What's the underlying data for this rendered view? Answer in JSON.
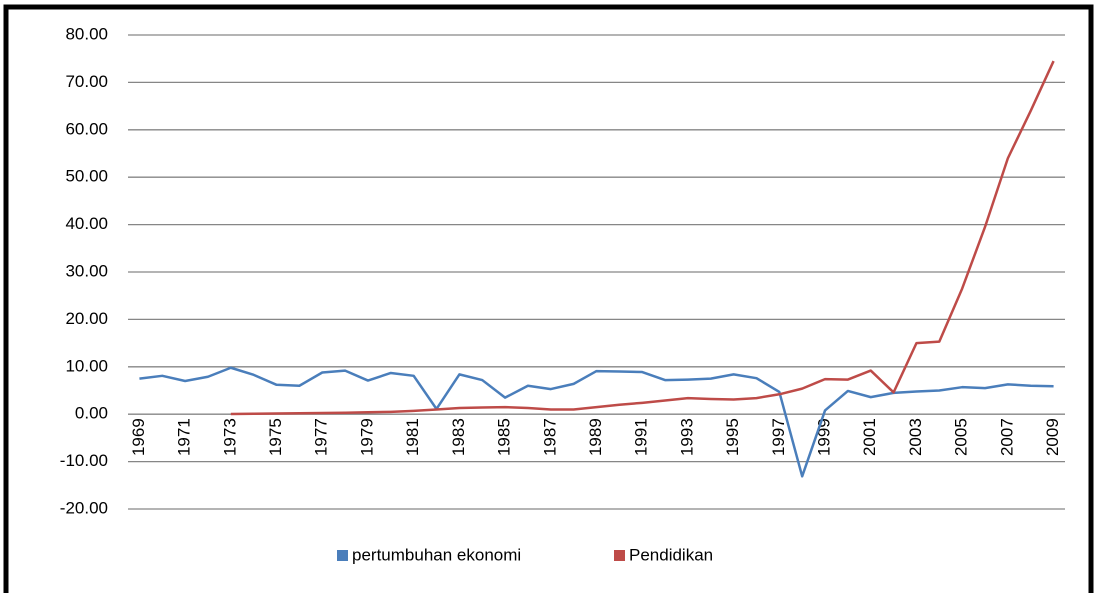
{
  "chart_data": {
    "type": "line",
    "categories": [
      "1969",
      null,
      "1971",
      null,
      "1973",
      null,
      "1975",
      null,
      "1977",
      null,
      "1979",
      null,
      "1981",
      null,
      "1983",
      null,
      "1985",
      null,
      "1987",
      null,
      "1989",
      null,
      "1991",
      null,
      "1993",
      null,
      "1995",
      null,
      "1997",
      null,
      "1999",
      null,
      "2001",
      null,
      "2003",
      null,
      "2005",
      null,
      "2007",
      null,
      "2009"
    ],
    "series": [
      {
        "name": "pertumbuhan ekonomi",
        "color": "#4a7ebb",
        "values": [
          7.5,
          8.1,
          7.0,
          7.9,
          9.8,
          8.3,
          6.2,
          6.0,
          8.8,
          9.2,
          7.1,
          8.7,
          8.1,
          1.1,
          8.4,
          7.2,
          3.5,
          6.0,
          5.3,
          6.4,
          9.1,
          9.0,
          8.9,
          7.2,
          7.3,
          7.5,
          8.4,
          7.6,
          4.7,
          -13.1,
          0.8,
          4.9,
          3.6,
          4.5,
          4.8,
          5.0,
          5.7,
          5.5,
          6.3,
          6.0,
          5.9
        ]
      },
      {
        "name": "Pendidikan",
        "color": "#be4b48",
        "values": [
          null,
          null,
          null,
          null,
          0.05,
          0.1,
          0.15,
          0.2,
          0.25,
          0.3,
          0.4,
          0.5,
          0.7,
          1.0,
          1.3,
          1.4,
          1.5,
          1.3,
          1.0,
          1.0,
          1.5,
          2.0,
          2.4,
          2.9,
          3.4,
          3.2,
          3.1,
          3.4,
          4.2,
          5.4,
          7.4,
          7.3,
          9.2,
          4.6,
          15.0,
          15.3,
          26.5,
          39.5,
          54.0,
          64.0,
          74.5
        ]
      }
    ],
    "ylim": [
      -20,
      80
    ],
    "yticks": [
      {
        "value": -20,
        "label": "-20.00"
      },
      {
        "value": -10,
        "label": "-10.00"
      },
      {
        "value": 0,
        "label": "0.00"
      },
      {
        "value": 10,
        "label": "10.00"
      },
      {
        "value": 20,
        "label": "20.00"
      },
      {
        "value": 30,
        "label": "30.00"
      },
      {
        "value": 40,
        "label": "40.00"
      },
      {
        "value": 50,
        "label": "50.00"
      },
      {
        "value": 60,
        "label": "60.00"
      },
      {
        "value": 70,
        "label": "70.00"
      },
      {
        "value": 80,
        "label": "80.00"
      }
    ],
    "grid": true,
    "legend": "bottom"
  }
}
